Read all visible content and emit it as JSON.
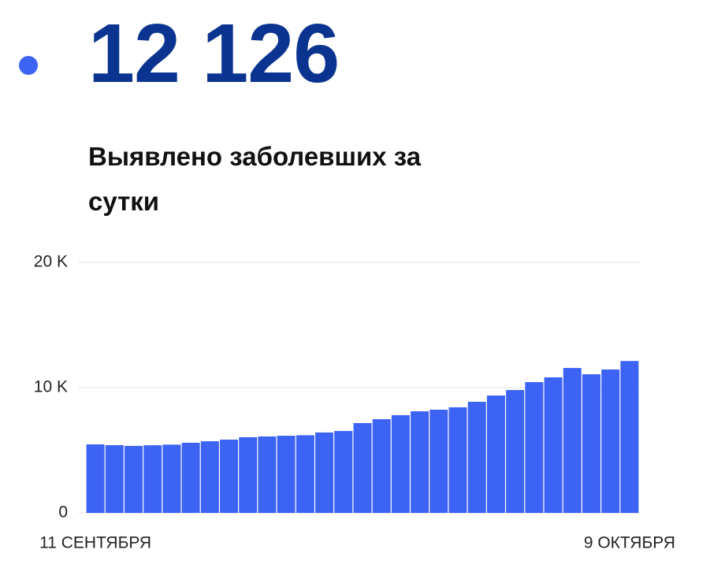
{
  "headline": "12 126",
  "chart_data": {
    "type": "bar",
    "title": "Выявлено заболевших за сутки",
    "categories": [
      "11 СЕНТЯБРЯ",
      null,
      null,
      null,
      null,
      null,
      null,
      null,
      null,
      null,
      null,
      null,
      null,
      null,
      null,
      null,
      null,
      null,
      null,
      null,
      null,
      null,
      null,
      null,
      null,
      null,
      null,
      null,
      "9 ОКТЯБРЯ"
    ],
    "values": [
      5470,
      5410,
      5350,
      5400,
      5450,
      5600,
      5720,
      5850,
      6040,
      6100,
      6160,
      6200,
      6420,
      6540,
      7170,
      7480,
      7800,
      8110,
      8240,
      8430,
      8870,
      9370,
      9810,
      10440,
      10820,
      11570,
      11070,
      11450,
      12126
    ],
    "color": "#3d63f5",
    "ylim": [
      0,
      20000
    ],
    "yticks": [
      0,
      {
        "value": 10000,
        "label": "10 K"
      },
      {
        "value": 20000,
        "label": "20 K"
      }
    ],
    "grid": true
  }
}
